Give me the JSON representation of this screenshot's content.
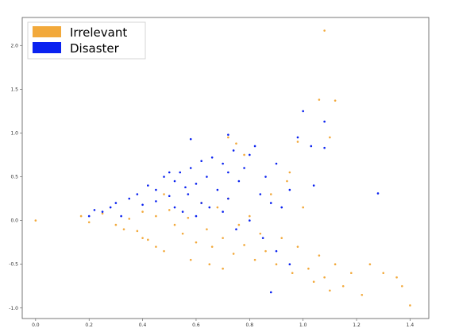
{
  "chart_data": {
    "type": "scatter",
    "title": "",
    "xlabel": "",
    "ylabel": "",
    "xlim": [
      -0.05,
      1.47
    ],
    "ylim": [
      -1.12,
      2.32
    ],
    "xticks": [
      "0.0",
      "0.2",
      "0.4",
      "0.6",
      "0.8",
      "1.0",
      "1.2",
      "1.4"
    ],
    "yticks": [
      "2.0",
      "1.5",
      "1.0",
      "0.5",
      "0.0",
      "-0.5",
      "-1.0"
    ],
    "grid": false,
    "legend": {
      "placement": "top-left",
      "entries": [
        "Irrelevant",
        "Disaster"
      ]
    },
    "series": [
      {
        "name": "Irrelevant",
        "color": "#f2a93b",
        "points": [
          [
            0.0,
            0.0
          ],
          [
            0.17,
            0.05
          ],
          [
            0.2,
            -0.02
          ],
          [
            0.25,
            0.08
          ],
          [
            0.3,
            -0.05
          ],
          [
            0.35,
            0.02
          ],
          [
            0.38,
            -0.12
          ],
          [
            0.4,
            0.1
          ],
          [
            0.42,
            -0.22
          ],
          [
            0.45,
            0.05
          ],
          [
            0.48,
            -0.35
          ],
          [
            0.5,
            0.12
          ],
          [
            0.52,
            -0.05
          ],
          [
            0.55,
            -0.15
          ],
          [
            0.57,
            0.03
          ],
          [
            0.6,
            -0.25
          ],
          [
            0.62,
            0.2
          ],
          [
            0.64,
            -0.1
          ],
          [
            0.66,
            -0.3
          ],
          [
            0.68,
            0.15
          ],
          [
            0.7,
            -0.2
          ],
          [
            0.72,
            0.25
          ],
          [
            0.74,
            -0.38
          ],
          [
            0.76,
            -0.05
          ],
          [
            0.78,
            -0.28
          ],
          [
            0.8,
            0.05
          ],
          [
            0.82,
            -0.45
          ],
          [
            0.84,
            -0.15
          ],
          [
            0.86,
            -0.35
          ],
          [
            0.88,
            0.3
          ],
          [
            0.9,
            -0.5
          ],
          [
            0.92,
            -0.2
          ],
          [
            0.94,
            0.45
          ],
          [
            0.96,
            -0.6
          ],
          [
            0.98,
            -0.3
          ],
          [
            1.0,
            0.15
          ],
          [
            1.02,
            -0.55
          ],
          [
            1.04,
            -0.7
          ],
          [
            1.06,
            -0.4
          ],
          [
            1.08,
            -0.65
          ],
          [
            1.1,
            -0.8
          ],
          [
            1.12,
            -0.5
          ],
          [
            1.15,
            -0.75
          ],
          [
            1.18,
            -0.6
          ],
          [
            1.22,
            -0.85
          ],
          [
            1.25,
            -0.5
          ],
          [
            1.3,
            -0.6
          ],
          [
            1.35,
            -0.65
          ],
          [
            1.37,
            -0.75
          ],
          [
            1.4,
            -0.97
          ],
          [
            1.1,
            0.95
          ],
          [
            1.12,
            1.37
          ],
          [
            1.06,
            1.38
          ],
          [
            0.98,
            0.9
          ],
          [
            0.95,
            0.55
          ],
          [
            0.75,
            0.88
          ],
          [
            0.78,
            0.75
          ],
          [
            0.72,
            0.95
          ],
          [
            1.08,
            2.17
          ],
          [
            0.48,
            0.3
          ],
          [
            0.58,
            -0.45
          ],
          [
            0.65,
            -0.5
          ],
          [
            0.7,
            -0.55
          ],
          [
            0.45,
            -0.3
          ],
          [
            0.4,
            -0.2
          ],
          [
            0.33,
            -0.1
          ]
        ]
      },
      {
        "name": "Disaster",
        "color": "#0a22f0",
        "points": [
          [
            0.2,
            0.05
          ],
          [
            0.22,
            0.12
          ],
          [
            0.25,
            0.1
          ],
          [
            0.28,
            0.15
          ],
          [
            0.3,
            0.2
          ],
          [
            0.32,
            0.05
          ],
          [
            0.35,
            0.25
          ],
          [
            0.38,
            0.3
          ],
          [
            0.4,
            0.18
          ],
          [
            0.42,
            0.4
          ],
          [
            0.45,
            0.35
          ],
          [
            0.48,
            0.5
          ],
          [
            0.5,
            0.28
          ],
          [
            0.52,
            0.45
          ],
          [
            0.54,
            0.55
          ],
          [
            0.56,
            0.38
          ],
          [
            0.58,
            0.6
          ],
          [
            0.6,
            0.42
          ],
          [
            0.62,
            0.68
          ],
          [
            0.64,
            0.5
          ],
          [
            0.66,
            0.72
          ],
          [
            0.68,
            0.35
          ],
          [
            0.7,
            0.65
          ],
          [
            0.72,
            0.55
          ],
          [
            0.74,
            0.8
          ],
          [
            0.76,
            0.45
          ],
          [
            0.78,
            0.6
          ],
          [
            0.8,
            0.75
          ],
          [
            0.82,
            0.85
          ],
          [
            0.84,
            0.3
          ],
          [
            0.86,
            0.5
          ],
          [
            0.88,
            0.2
          ],
          [
            0.9,
            0.65
          ],
          [
            0.92,
            0.15
          ],
          [
            0.95,
            0.35
          ],
          [
            0.98,
            0.95
          ],
          [
            1.0,
            1.25
          ],
          [
            1.03,
            0.85
          ],
          [
            1.04,
            0.4
          ],
          [
            1.08,
            1.13
          ],
          [
            1.08,
            0.83
          ],
          [
            1.28,
            0.31
          ],
          [
            0.58,
            0.93
          ],
          [
            0.55,
            0.1
          ],
          [
            0.6,
            0.05
          ],
          [
            0.62,
            0.2
          ],
          [
            0.65,
            0.15
          ],
          [
            0.7,
            0.1
          ],
          [
            0.72,
            0.25
          ],
          [
            0.75,
            -0.1
          ],
          [
            0.8,
            0.0
          ],
          [
            0.85,
            -0.2
          ],
          [
            0.9,
            -0.35
          ],
          [
            0.95,
            -0.5
          ],
          [
            0.88,
            -0.82
          ],
          [
            0.72,
            0.98
          ],
          [
            0.5,
            0.55
          ],
          [
            0.45,
            0.22
          ],
          [
            0.52,
            0.15
          ],
          [
            0.57,
            0.3
          ]
        ]
      }
    ]
  }
}
